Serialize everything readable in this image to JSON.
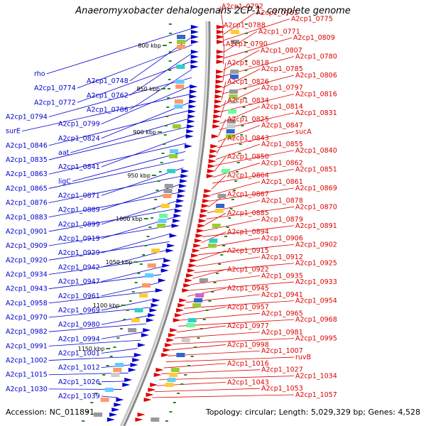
{
  "title": "Anaeromyxobacter dehalogenans 2CP-1, complete genome",
  "footer": {
    "accession_text": "Accession: NC_011891",
    "topology_text": "Topology: circular; Length: 5,029,329 bp; Genes: 4,528"
  },
  "colors": {
    "forward": "#dd0000",
    "reverse": "#0000cc",
    "backbone": "#888888",
    "tick": "#228822"
  },
  "scale_ticks": [
    "800 kbp",
    "850 kbp",
    "900 kbp",
    "950 kbp",
    "1000 kbp",
    "1050 kbp",
    "1100 kbp",
    "1150 kbp"
  ],
  "left_labels": [
    "rho",
    "A2cp1_0748",
    "A2cp1_0774",
    "A2cp1_0762",
    "A2cp1_0772",
    "A2cp1_0786",
    "A2cp1_0794",
    "A2cp1_0799",
    "surE",
    "A2cp1_0824",
    "A2cp1_0846",
    "aat",
    "A2cp1_0835",
    "A2cp1_0841",
    "A2cp1_0863",
    "ligC",
    "A2cp1_0865",
    "A2cp1_0871",
    "A2cp1_0876",
    "A2cp1_0889",
    "A2cp1_0883",
    "A2cp1_0899",
    "A2cp1_0901",
    "A2cp1_0919",
    "A2cp1_0909",
    "A2cp1_0929",
    "A2cp1_0920",
    "A2cp1_0942",
    "A2cp1_0934",
    "A2cp1_0947",
    "A2cp1_0943",
    "A2cp1_0961",
    "A2cp1_0958",
    "A2cp1_0969",
    "A2cp1_0970",
    "A2cp1_0980",
    "A2cp1_0982",
    "A2cp1_0994",
    "A2cp1_0991",
    "A2cp1_1001",
    "A2cp1_1002",
    "A2cp1_1012",
    "A2cp1_1015",
    "A2cp1_1026",
    "A2cp1_1030",
    "A2cp1_1039"
  ],
  "right_labels": [
    "A2cp1_0792",
    "A2cp1_0761",
    "A2cp1_0775",
    "A2cp1_0788",
    "A2cp1_0771",
    "A2cp1_0809",
    "A2cp1_0790",
    "A2cp1_0807",
    "A2cp1_0780",
    "A2cp1_0818",
    "A2cp1_0785",
    "A2cp1_0806",
    "A2cp1_0826",
    "A2cp1_0797",
    "A2cp1_0816",
    "A2cp1_0834",
    "A2cp1_0814",
    "A2cp1_0831",
    "A2cp1_0825",
    "A2cp1_0847",
    "sucA",
    "A2cp1_0843",
    "A2cp1_0855",
    "A2cp1_0840",
    "A2cp1_0850",
    "A2cp1_0862",
    "A2cp1_0851",
    "A2cp1_0864",
    "A2cp1_0861",
    "A2cp1_0869",
    "A2cp1_0867",
    "A2cp1_0878",
    "A2cp1_0870",
    "A2cp1_0885",
    "A2cp1_0879",
    "A2cp1_0891",
    "A2cp1_0894",
    "A2cp1_0906",
    "A2cp1_0902",
    "A2cp1_0915",
    "A2cp1_0912",
    "A2cp1_0925",
    "A2cp1_0922",
    "A2cp1_0935",
    "A2cp1_0933",
    "A2cp1_0945",
    "A2cp1_0941",
    "A2cp1_0954",
    "A2cp1_0957",
    "A2cp1_0965",
    "A2cp1_0968",
    "A2cp1_0977",
    "A2cp1_0981",
    "A2cp1_0995",
    "A2cp1_0998",
    "A2cp1_1007",
    "ruvB",
    "A2cp1_1016",
    "A2cp1_1027",
    "A2cp1_1034",
    "A2cp1_1043",
    "A2cp1_1053",
    "A2cp1_1057"
  ]
}
